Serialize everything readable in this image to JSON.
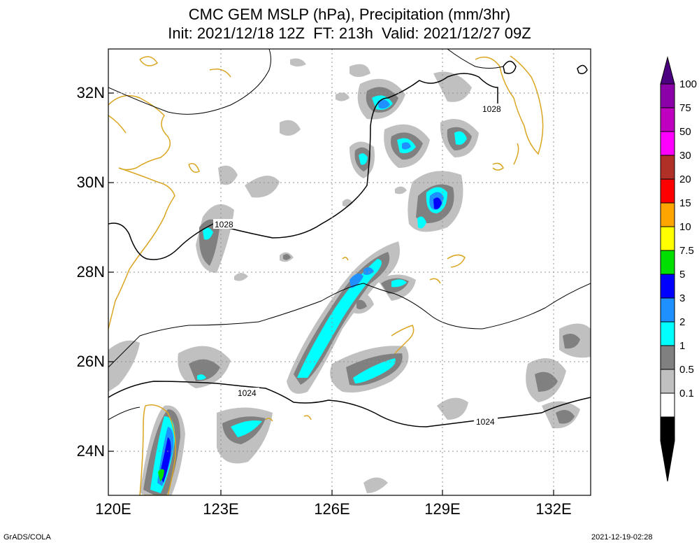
{
  "title": {
    "line1": "CMC GEM MSLP (hPa), Precipitation (mm/3hr)",
    "line2": "Init: 2021/12/18 12Z  FT: 213h  Valid: 2021/12/27 09Z"
  },
  "map": {
    "lon_range": [
      120,
      133
    ],
    "lat_range": [
      23,
      33
    ],
    "lon_ticks": [
      "120E",
      "123E",
      "126E",
      "129E",
      "132E"
    ],
    "lat_ticks": [
      "32N",
      "30N",
      "28N",
      "26N",
      "24N"
    ],
    "grid": true,
    "isobar_labels": [
      {
        "text": "1028"
      },
      {
        "text": "1028"
      },
      {
        "text": "1024"
      },
      {
        "text": "1024"
      }
    ]
  },
  "colorbar": {
    "levels": [
      "100",
      "75",
      "50",
      "30",
      "20",
      "15",
      "10",
      "7.5",
      "5",
      "3",
      "2",
      "1",
      "0.5",
      "0.1"
    ],
    "colors": [
      "#4b0082",
      "#8b00a8",
      "#c000c0",
      "#ff00ff",
      "#b03028",
      "#ff0000",
      "#ffa500",
      "#ffff00",
      "#00e000",
      "#0000ff",
      "#1e90ff",
      "#00ffff",
      "#808080",
      "#c0c0c0",
      "#ffffff"
    ]
  },
  "footer": {
    "left": "GrADS/COLA",
    "right": "2021-12-19-02:28"
  }
}
